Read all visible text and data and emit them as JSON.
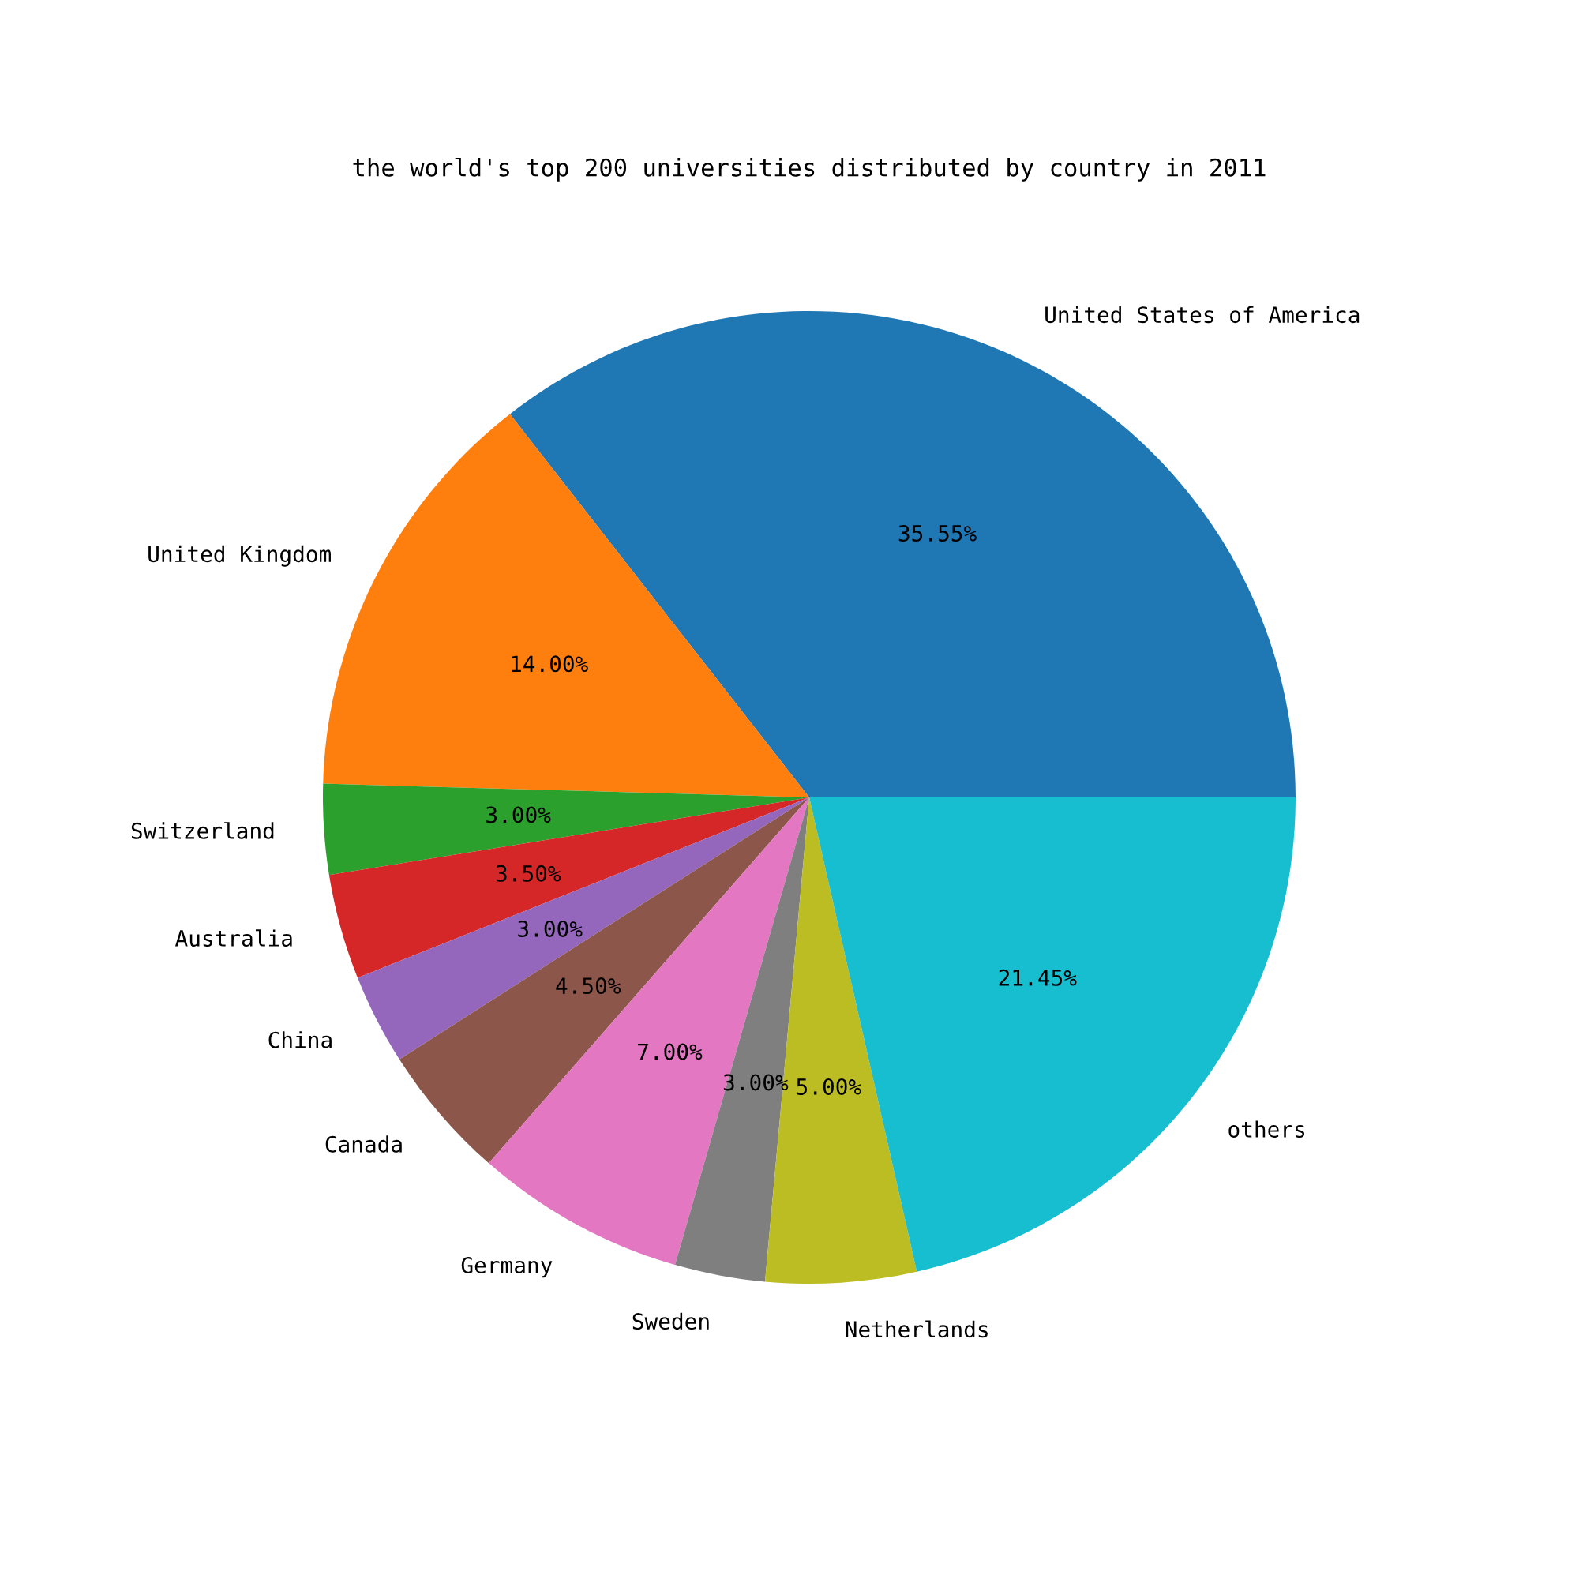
{
  "chart_data": {
    "type": "pie",
    "title": "the world's top 200 universities distributed by country in 2011",
    "categories": [
      "United States of America",
      "United Kingdom",
      "Switzerland",
      "Australia",
      "China",
      "Canada",
      "Germany",
      "Sweden",
      "Netherlands",
      "others"
    ],
    "values": [
      35.55,
      14.0,
      3.0,
      3.5,
      3.0,
      4.5,
      7.0,
      3.0,
      5.0,
      21.45
    ],
    "value_labels": [
      "35.55%",
      "14.00%",
      "3.00%",
      "3.50%",
      "3.00%",
      "4.50%",
      "7.00%",
      "3.00%",
      "5.00%",
      "21.45%"
    ],
    "colors": [
      "#1f77b4",
      "#ff7f0e",
      "#2ca02c",
      "#d62728",
      "#9467bd",
      "#8c564b",
      "#e377c2",
      "#7f7f7f",
      "#bcbd22",
      "#17becf"
    ],
    "legend": false
  }
}
